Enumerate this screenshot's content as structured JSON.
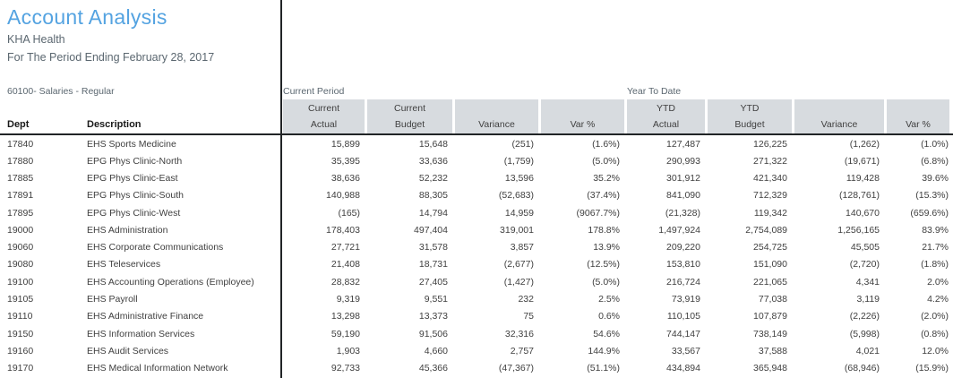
{
  "report": {
    "title": "Account Analysis",
    "company": "KHA Health",
    "period_line": "For The Period Ending February 28, 2017",
    "account_label": "60100- Salaries - Regular"
  },
  "table": {
    "group_headers": {
      "current_period": "Current Period",
      "year_to_date": "Year To Date"
    },
    "left_headers": {
      "dept": "Dept",
      "description": "Description"
    },
    "column_boxes": [
      {
        "line1": "Current",
        "line2": "Actual"
      },
      {
        "line1": "Current",
        "line2": "Budget"
      },
      {
        "line1": "",
        "line2": "Variance"
      },
      {
        "line1": "",
        "line2": "Var %"
      },
      {
        "line1": "YTD",
        "line2": "Actual"
      },
      {
        "line1": "YTD",
        "line2": "Budget"
      },
      {
        "line1": "",
        "line2": "Variance"
      },
      {
        "line1": "",
        "line2": "Var %"
      }
    ],
    "rows": [
      {
        "dept": "17840",
        "description": "EHS Sports Medicine",
        "values": [
          "15,899",
          "15,648",
          "(251)",
          "(1.6%)",
          "127,487",
          "126,225",
          "(1,262)",
          "(1.0%)"
        ]
      },
      {
        "dept": "17880",
        "description": "EPG Phys Clinic-North",
        "values": [
          "35,395",
          "33,636",
          "(1,759)",
          "(5.0%)",
          "290,993",
          "271,322",
          "(19,671)",
          "(6.8%)"
        ]
      },
      {
        "dept": "17885",
        "description": "EPG Phys Clinic-East",
        "values": [
          "38,636",
          "52,232",
          "13,596",
          "35.2%",
          "301,912",
          "421,340",
          "119,428",
          "39.6%"
        ]
      },
      {
        "dept": "17891",
        "description": "EPG Phys Clinic-South",
        "values": [
          "140,988",
          "88,305",
          "(52,683)",
          "(37.4%)",
          "841,090",
          "712,329",
          "(128,761)",
          "(15.3%)"
        ]
      },
      {
        "dept": "17895",
        "description": "EPG Phys Clinic-West",
        "values": [
          "(165)",
          "14,794",
          "14,959",
          "(9067.7%)",
          "(21,328)",
          "119,342",
          "140,670",
          "(659.6%)"
        ]
      },
      {
        "dept": "19000",
        "description": "EHS Administration",
        "values": [
          "178,403",
          "497,404",
          "319,001",
          "178.8%",
          "1,497,924",
          "2,754,089",
          "1,256,165",
          "83.9%"
        ]
      },
      {
        "dept": "19060",
        "description": "EHS Corporate Communications",
        "values": [
          "27,721",
          "31,578",
          "3,857",
          "13.9%",
          "209,220",
          "254,725",
          "45,505",
          "21.7%"
        ]
      },
      {
        "dept": "19080",
        "description": "EHS Teleservices",
        "values": [
          "21,408",
          "18,731",
          "(2,677)",
          "(12.5%)",
          "153,810",
          "151,090",
          "(2,720)",
          "(1.8%)"
        ]
      },
      {
        "dept": "19100",
        "description": "EHS Accounting Operations (Employee)",
        "values": [
          "28,832",
          "27,405",
          "(1,427)",
          "(5.0%)",
          "216,724",
          "221,065",
          "4,341",
          "2.0%"
        ]
      },
      {
        "dept": "19105",
        "description": "EHS Payroll",
        "values": [
          "9,319",
          "9,551",
          "232",
          "2.5%",
          "73,919",
          "77,038",
          "3,119",
          "4.2%"
        ]
      },
      {
        "dept": "19110",
        "description": "EHS Administrative Finance",
        "values": [
          "13,298",
          "13,373",
          "75",
          "0.6%",
          "110,105",
          "107,879",
          "(2,226)",
          "(2.0%)"
        ]
      },
      {
        "dept": "19150",
        "description": "EHS Information Services",
        "values": [
          "59,190",
          "91,506",
          "32,316",
          "54.6%",
          "744,147",
          "738,149",
          "(5,998)",
          "(0.8%)"
        ]
      },
      {
        "dept": "19160",
        "description": "EHS Audit Services",
        "values": [
          "1,903",
          "4,660",
          "2,757",
          "144.9%",
          "33,567",
          "37,588",
          "4,021",
          "12.0%"
        ]
      },
      {
        "dept": "19170",
        "description": "EHS Medical Information Network",
        "values": [
          "92,733",
          "45,366",
          "(47,367)",
          "(51.1%)",
          "434,894",
          "365,948",
          "(68,946)",
          "(15.9%)"
        ]
      }
    ]
  },
  "colors": {
    "title": "#54a3e1",
    "subtitle": "#5b6770",
    "label": "#5b6770",
    "box_bg": "#d7dbdf",
    "box_text": "#3f3f3f",
    "body": "#3f3f3f",
    "head": "#1a1a1a",
    "line": "#212426"
  }
}
